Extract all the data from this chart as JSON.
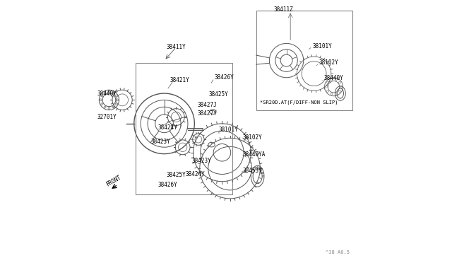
{
  "bg_color": "#ffffff",
  "line_color": "#555555",
  "text_color": "#000000",
  "watermark": "^38 A0.5",
  "front_label": "FRONT",
  "box_label_main": "38411Y",
  "box_label_inset": "*SR20D.AT(F/DIFF-NON SLIP)"
}
